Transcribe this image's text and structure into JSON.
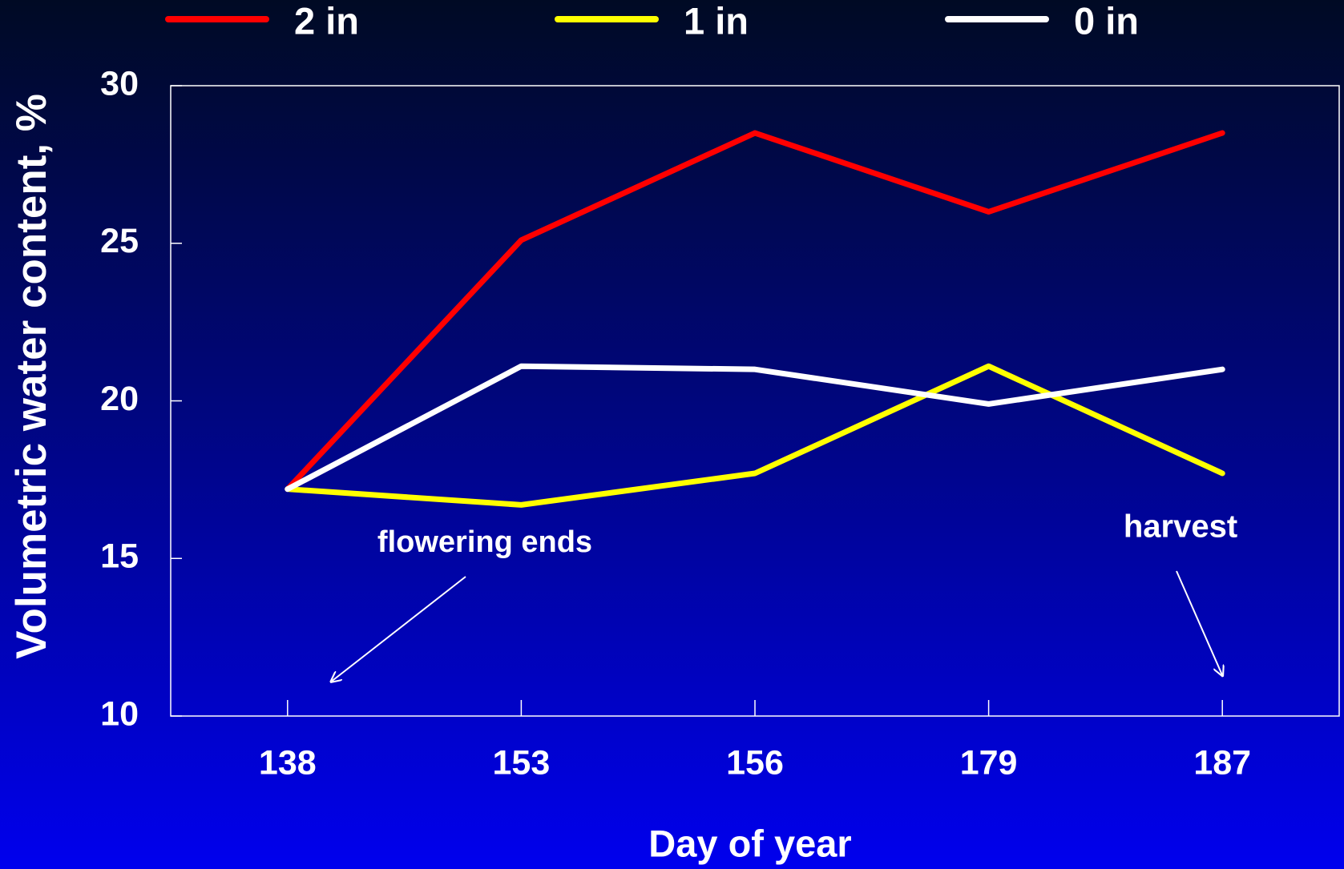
{
  "chart_data": {
    "type": "line",
    "x_label": "Day of year",
    "y_label": "Volumetric water content, %",
    "categories": [
      "138",
      "153",
      "156",
      "179",
      "187"
    ],
    "series": [
      {
        "name": "2 in",
        "color": "#ff0000",
        "values": [
          17.2,
          25.1,
          28.5,
          26.0,
          28.5
        ]
      },
      {
        "name": "1 in",
        "color": "#ffff00",
        "values": [
          17.2,
          16.7,
          17.7,
          21.1,
          17.7
        ]
      },
      {
        "name": "0 in",
        "color": "#ffffff",
        "values": [
          17.2,
          21.1,
          21.0,
          19.9,
          21.0
        ]
      }
    ],
    "ylim": [
      10,
      30
    ],
    "yticks": [
      10,
      15,
      20,
      25,
      30
    ],
    "grid": false,
    "legend": "top",
    "annotations": [
      "flowering ends",
      "harvest"
    ]
  }
}
